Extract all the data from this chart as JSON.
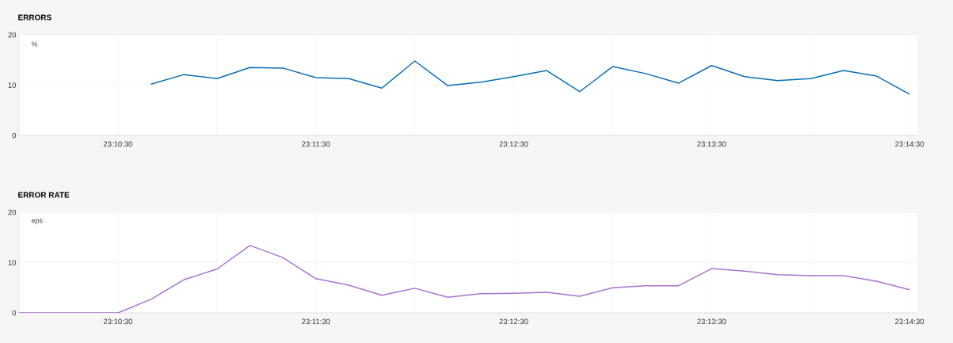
{
  "chart_data": [
    {
      "type": "line",
      "title": "ERRORS",
      "ylabel": "%",
      "x": [
        23.177778,
        23.180556,
        23.183333,
        23.186111,
        23.188889,
        23.191667,
        23.194444,
        23.197222,
        23.2,
        23.202778,
        23.205556,
        23.208333,
        23.211111,
        23.213889,
        23.216667,
        23.219444,
        23.222222,
        23.225,
        23.227778,
        23.230556,
        23.233333,
        23.236111,
        23.238889,
        23.241667
      ],
      "series": [
        {
          "color": "#0a6eb4",
          "values": [
            10.2,
            12.1,
            11.3,
            13.5,
            13.4,
            11.5,
            11.3,
            9.4,
            14.8,
            9.9,
            10.6,
            11.7,
            12.9,
            8.7,
            13.7,
            12.3,
            10.4,
            13.9,
            11.7,
            10.9,
            11.3,
            12.9,
            11.8,
            8.2
          ]
        }
      ],
      "xlim": [
        23.166667,
        23.242333
      ],
      "ylim": [
        0,
        20
      ],
      "yticks": [
        0,
        10,
        20
      ],
      "xticks": [
        {
          "value": 23.175,
          "label": "23:10:30"
        },
        {
          "value": 23.183333,
          "label": null
        },
        {
          "value": 23.191667,
          "label": "23:11:30"
        },
        {
          "value": 23.2,
          "label": null
        },
        {
          "value": 23.208333,
          "label": "23:12:30"
        },
        {
          "value": 23.216667,
          "label": null
        },
        {
          "value": 23.225,
          "label": "23:13:30"
        },
        {
          "value": 23.233333,
          "label": null
        },
        {
          "value": 23.241667,
          "label": "23:14:30"
        }
      ],
      "grid": true,
      "marker": "none",
      "line_style": "solid"
    },
    {
      "type": "line",
      "title": "ERROR RATE",
      "ylabel": "eps",
      "x": [
        23.166667,
        23.169444,
        23.172222,
        23.175,
        23.177778,
        23.180556,
        23.183333,
        23.186111,
        23.188889,
        23.191667,
        23.194444,
        23.197222,
        23.2,
        23.202778,
        23.205556,
        23.208333,
        23.211111,
        23.213889,
        23.216667,
        23.219444,
        23.222222,
        23.225,
        23.227778,
        23.230556,
        23.233333,
        23.236111,
        23.238889,
        23.241667
      ],
      "series": [
        {
          "color": "#a973cf",
          "values": [
            0,
            0,
            0,
            0,
            2.7,
            6.6,
            8.7,
            13.4,
            11.0,
            6.8,
            5.5,
            3.5,
            4.9,
            3.1,
            3.8,
            3.9,
            4.1,
            3.3,
            5.0,
            5.4,
            5.4,
            8.8,
            8.3,
            7.6,
            7.4,
            7.4,
            6.3,
            4.6
          ]
        }
      ],
      "xlim": [
        23.166667,
        23.242333
      ],
      "ylim": [
        0,
        20
      ],
      "yticks": [
        0,
        10,
        20
      ],
      "xticks": [
        {
          "value": 23.175,
          "label": "23:10:30"
        },
        {
          "value": 23.183333,
          "label": null
        },
        {
          "value": 23.191667,
          "label": "23:11:30"
        },
        {
          "value": 23.2,
          "label": null
        },
        {
          "value": 23.208333,
          "label": "23:12:30"
        },
        {
          "value": 23.216667,
          "label": null
        },
        {
          "value": 23.225,
          "label": "23:13:30"
        },
        {
          "value": 23.233333,
          "label": null
        },
        {
          "value": 23.241667,
          "label": "23:14:30"
        }
      ],
      "grid": true,
      "marker": "none",
      "line_style": "solid"
    }
  ]
}
